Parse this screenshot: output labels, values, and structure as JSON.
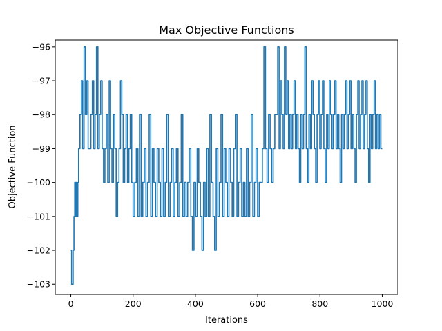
{
  "chart_data": {
    "type": "line",
    "title": "Max Objective Functions",
    "xlabel": "Iterations",
    "ylabel": "Objective Function",
    "xlim": [
      -50,
      1050
    ],
    "ylim": [
      -103.3,
      -95.8
    ],
    "xticks": [
      {
        "value": 0,
        "label": "0"
      },
      {
        "value": 200,
        "label": "200"
      },
      {
        "value": 400,
        "label": "400"
      },
      {
        "value": 600,
        "label": "600"
      },
      {
        "value": 800,
        "label": "800"
      },
      {
        "value": 1000,
        "label": "1000"
      }
    ],
    "yticks": [
      {
        "value": -103,
        "label": "−103"
      },
      {
        "value": -102,
        "label": "−102"
      },
      {
        "value": -101,
        "label": "−101"
      },
      {
        "value": -100,
        "label": "−100"
      },
      {
        "value": -99,
        "label": "−99"
      },
      {
        "value": -98,
        "label": "−98"
      },
      {
        "value": -97,
        "label": "−97"
      },
      {
        "value": -96,
        "label": "−96"
      }
    ],
    "grid": false,
    "series": [
      {
        "color": "#1f77b4",
        "segments": [
          {
            "x_start": 0,
            "x_end": 10,
            "levels": [
              -102,
              -103,
              -103,
              -102
            ]
          },
          {
            "x_start": 10,
            "x_end": 25,
            "levels": [
              -101,
              -100,
              -101,
              -100,
              -101,
              -100
            ]
          },
          {
            "x_start": 25,
            "x_end": 60,
            "levels": [
              -99,
              -98,
              -97,
              -99,
              -96,
              -98,
              -97,
              -99
            ]
          },
          {
            "x_start": 60,
            "x_end": 105,
            "levels": [
              -99,
              -98,
              -97,
              -99,
              -98,
              -96,
              -99,
              -98,
              -97,
              -99
            ]
          },
          {
            "x_start": 105,
            "x_end": 200,
            "levels": [
              -100,
              -99,
              -98,
              -100,
              -97,
              -99,
              -100,
              -98,
              -99,
              -101,
              -100,
              -99,
              -97,
              -98,
              -100,
              -99,
              -98,
              -100,
              -99,
              -98,
              -100
            ]
          },
          {
            "x_start": 200,
            "x_end": 370,
            "levels": [
              -101,
              -100,
              -99,
              -101,
              -98,
              -101,
              -100,
              -99,
              -101,
              -100,
              -98,
              -101,
              -99,
              -100,
              -101,
              -99,
              -100,
              -101,
              -99,
              -101,
              -100,
              -98,
              -101,
              -100,
              -99,
              -101,
              -100,
              -99,
              -101,
              -100,
              -98,
              -101,
              -100
            ]
          },
          {
            "x_start": 370,
            "x_end": 610,
            "levels": [
              -101,
              -100,
              -99,
              -101,
              -102,
              -100,
              -101,
              -99,
              -100,
              -101,
              -102,
              -100,
              -101,
              -99,
              -101,
              -98,
              -100,
              -101,
              -102,
              -99,
              -101,
              -100,
              -98,
              -101,
              -99,
              -100,
              -101,
              -99,
              -100,
              -101,
              -99,
              -98,
              -101,
              -100,
              -99,
              -101,
              -100,
              -101,
              -99,
              -101,
              -100,
              -98,
              -101,
              -100,
              -99,
              -101,
              -100
            ]
          },
          {
            "x_start": 610,
            "x_end": 660,
            "levels": [
              -100,
              -99,
              -96,
              -99,
              -100,
              -98,
              -99,
              -100,
              -99,
              -98
            ]
          },
          {
            "x_start": 660,
            "x_end": 1000,
            "levels": [
              -98,
              -96,
              -99,
              -97,
              -98,
              -99,
              -96,
              -98,
              -97,
              -99,
              -98,
              -99,
              -98,
              -97,
              -99,
              -98,
              -99,
              -100,
              -98,
              -99,
              -98,
              -96,
              -99,
              -100,
              -98,
              -99,
              -97,
              -98,
              -99,
              -100,
              -98,
              -97,
              -99,
              -98,
              -97,
              -99,
              -100,
              -98,
              -99,
              -97,
              -98,
              -99,
              -98,
              -97,
              -99,
              -98,
              -99,
              -100,
              -98,
              -99,
              -98,
              -97,
              -99,
              -98,
              -97,
              -99,
              -98,
              -99,
              -100,
              -98,
              -97,
              -99,
              -98,
              -97,
              -99,
              -98,
              -97,
              -99,
              -100,
              -98,
              -99,
              -98,
              -97,
              -99,
              -98,
              -99,
              -98,
              -99
            ]
          }
        ]
      }
    ]
  }
}
